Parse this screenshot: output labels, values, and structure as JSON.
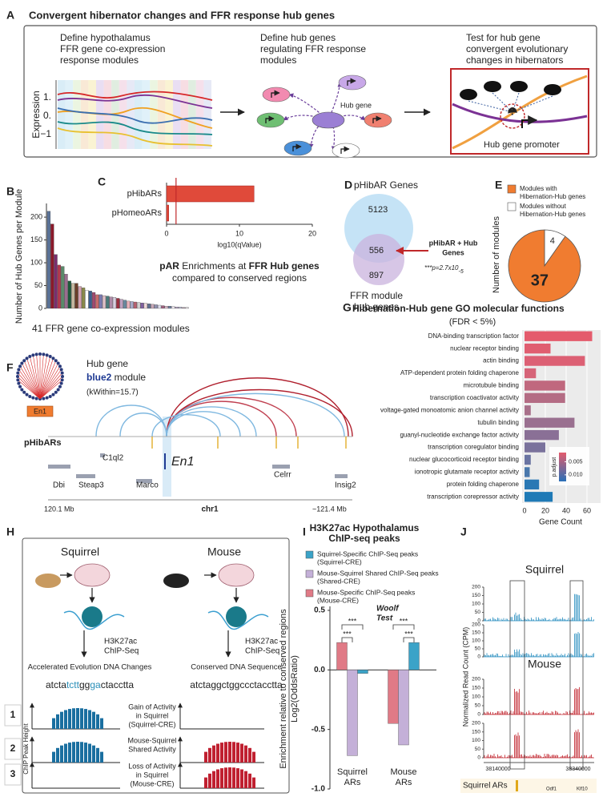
{
  "panel_labels": [
    "A",
    "B",
    "C",
    "D",
    "E",
    "F",
    "G",
    "H",
    "I",
    "J"
  ],
  "panel_a": {
    "title": "Convergent hibernator changes and FFR response hub genes",
    "step1": [
      "Define hypothalamus",
      "FFR gene co-expression",
      "response modules"
    ],
    "step2": [
      "Define hub genes",
      "regulating FFR response",
      "modules"
    ],
    "step3": [
      "Test for hub gene",
      "convergent evolutionary",
      "changes in hibernators"
    ],
    "y_label": "Expression",
    "y_tick_labels": [
      "1.",
      "0.",
      "−1"
    ],
    "hub_label": "Hub gene",
    "question_mark": "?",
    "promoter_label": "Hub gene promoter"
  },
  "panel_d": {
    "top_label": "pHibAR Genes",
    "counts": [
      5123,
      556,
      897
    ],
    "bottom_label": [
      "FFR module",
      "hub genes"
    ],
    "overlap_label": [
      "pHibAR + Hub",
      "Genes"
    ],
    "p_value": "***p=2.7x10",
    "p_exponent": "-5"
  },
  "panel_f": {
    "hub_gene": "Hub gene",
    "module_name": "blue2",
    "module_word": " module",
    "kwithin": "(kWithin=15.7)",
    "hub_badge": "En1",
    "track_label": "pHibARs",
    "focus_gene": "En1",
    "genes": [
      "C1ql2",
      "Dbi",
      "Steap3",
      "Marco",
      "Celrr",
      "Insig2"
    ],
    "left_coord": "120.1 Mb",
    "chrom": "chr1",
    "right_coord": "~121.4 Mb"
  },
  "panel_h": {
    "species": [
      "Squirrel",
      "Mouse"
    ],
    "assay": [
      "H3K27ac",
      "ChIP-Seq"
    ],
    "evolution": "Accelerated Evolution DNA Changes",
    "conserved": "Conserved DNA Sequence",
    "squirrel_seq": [
      "atcta",
      "tctt",
      "gg",
      "ga",
      "ctacctta"
    ],
    "mouse_seq": "atctaggctggccctacctta",
    "rows": [
      {
        "number": 1,
        "label": [
          "Gain of Activity",
          "in Squirrel",
          "(Squirrel-CRE)"
        ]
      },
      {
        "number": 2,
        "label": [
          "Mouse-Squirrel",
          "Shared Activity"
        ]
      },
      {
        "number": 3,
        "label": [
          "Loss of Activity",
          "in Squirrel",
          "(Mouse-CRE)"
        ]
      }
    ],
    "y_label": "ChIP Peak Height"
  },
  "panel_j": {
    "species": [
      "Squirrel",
      "Mouse"
    ],
    "y_label": "Normalized Read Count (CPM)",
    "track_ticks": [
      0,
      50,
      100,
      150,
      200
    ],
    "x_labels": [
      38140000,
      38340000
    ],
    "ar_label": "Squirrel ARs",
    "genes": [
      "Odf1",
      "Klf10"
    ]
  },
  "chart_data": [
    {
      "type": "bar",
      "y_label": "Number of Hub Genes per Module",
      "x_label": "41 FFR gene co-expression modules",
      "values": [
        213,
        185,
        118,
        95,
        92,
        75,
        60,
        55,
        55,
        48,
        45,
        40,
        38,
        35,
        30,
        30,
        28,
        27,
        25,
        24,
        22,
        20,
        18,
        16,
        15,
        14,
        13,
        12,
        11,
        10,
        9,
        8,
        7,
        6,
        5,
        5,
        4,
        3,
        3,
        2,
        2
      ],
      "colors": [
        "#5b7399",
        "#8b1a2b",
        "#7a2e6e",
        "#b33a4f",
        "#5a8a6a",
        "#9a6d8f",
        "#1e5a3a",
        "#c7b8a0",
        "#6b3f2a",
        "#d4a0b0",
        "#8a8a4a",
        "#ffffff",
        "#3a5f8f",
        "#a04a70",
        "#c96a6a",
        "#7a7ab0",
        "#e0c0c8",
        "#4a7a7a",
        "#b08aa8",
        "#d8d0e0",
        "#9a3040",
        "#c0a0c0",
        "#6a8aa0",
        "#e8b0b8",
        "#a8a8c8",
        "#b86070",
        "#d0d0d0",
        "#8060a0",
        "#f0d8d8",
        "#607090",
        "#c8a8b8",
        "#9090b0",
        "#e0e0f0",
        "#a06080",
        "#d8b8c8",
        "#7080a0",
        "#f0e8f0",
        "#b0a0c0",
        "#c0c0d8",
        "#a890a0",
        "#e8e0e8"
      ],
      "ylim": [
        0,
        230
      ],
      "yticks": [
        0,
        50,
        100,
        150,
        200
      ]
    },
    {
      "type": "hbar",
      "categories": [
        "pHibARs",
        "pHomeoARs"
      ],
      "values": [
        12,
        0.3
      ],
      "color": "#e04a3a",
      "xlim": [
        0,
        20
      ],
      "xticks": [
        0,
        10,
        20
      ],
      "x_label": "log10(qValue)",
      "threshold": 1.3,
      "threshold_color": "#c0282a",
      "caption": [
        [
          "pAR",
          " Enrichments at ",
          "FFR Hub genes"
        ],
        [
          "compared to conserved regions"
        ]
      ]
    },
    {
      "type": "pie",
      "categories": [
        [
          "Modules with",
          "Hibernation-Hub genes"
        ],
        [
          "Modules without",
          "Hibernation-Hub genes"
        ]
      ],
      "values": [
        37,
        4
      ],
      "colors": [
        "#f07c30",
        "#ffffff"
      ],
      "y_label": "Number of modules"
    },
    {
      "type": "hbar",
      "title": "Hibernation-Hub gene GO molecular functions",
      "subtitle": "(FDR < 5%)",
      "categories": [
        "DNA-binding transcription factor",
        "nuclear receptor binding",
        "actin binding",
        "ATP-dependent protein folding chaperone",
        "microtubule binding",
        "transcription coactivator activity",
        "voltage-gated monoatomic anion channel activity",
        "tubulin binding",
        "guanyl-nucleotide exchange factor activity",
        "transcription coregulator binding",
        "nuclear glucocorticoid receptor binding",
        "ionotropic glutamate receptor activity",
        "protein folding chaperone",
        "transcription corepressor activity"
      ],
      "values": [
        65,
        25,
        58,
        11,
        39,
        39,
        6,
        48,
        33,
        20,
        6,
        5,
        14,
        27
      ],
      "colors": [
        "#e45b6c",
        "#e05e70",
        "#dc6074",
        "#d66478",
        "#c0687e",
        "#b46c84",
        "#a8708a",
        "#9a7090",
        "#8a7096",
        "#7a729c",
        "#6a74a2",
        "#4a78ac",
        "#2a78b4",
        "#1f7ab6"
      ],
      "xlim": [
        0,
        70
      ],
      "xticks": [
        0,
        20,
        40,
        60
      ],
      "x_label": "Gene Count",
      "colorbar": {
        "label": "p.adjust",
        "lim": [
          0.0015,
          0.0125
        ],
        "ticks": [
          0.005,
          {
            "value": 0.01,
            "label": "0.010"
          }
        ],
        "colors": [
          "#e45b6c",
          "#2a70b8"
        ]
      }
    },
    {
      "type": "grouped_bar",
      "title": [
        "H3K27ac Hypothalamus",
        "ChIP-seq peaks"
      ],
      "y_label": [
        "Enrichment relative to conserved regions",
        "Log2(OddsRatio)"
      ],
      "categories": [
        [
          "Squirrel",
          "ARs"
        ],
        [
          "Mouse",
          "ARs"
        ]
      ],
      "series": [
        {
          "name": [
            "Squirrel-Specific ChIP-Seq peaks",
            "(Squirrel-CRE)"
          ],
          "color": "#3ba3c8",
          "values": [
            -0.03,
            0.23
          ]
        },
        {
          "name": [
            "Mouse-Squirrel Shared ChIP-Seq peaks",
            "(Shared-CRE)"
          ],
          "color": "#c4b0d8",
          "values": [
            -0.72,
            -0.63
          ]
        },
        {
          "name": [
            "Mouse-Specific ChIP-Seq peaks",
            "(Mouse-CRE)"
          ],
          "color": "#e07a86",
          "values": [
            0.23,
            -0.45
          ]
        }
      ],
      "ylim": [
        -1.0,
        0.5
      ],
      "yticks": [
        {
          "value": -1.0,
          "label": "-1.0"
        },
        -0.5,
        {
          "value": 0,
          "label": "0.0"
        },
        0.5
      ],
      "significance": [
        "***",
        "***",
        "***",
        "***"
      ],
      "annotation": [
        "Woolf",
        "Test"
      ]
    }
  ]
}
